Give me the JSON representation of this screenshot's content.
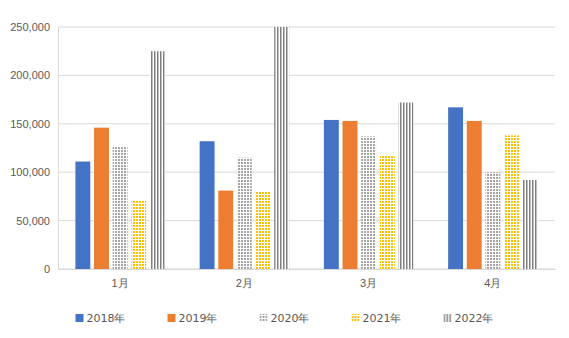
{
  "chart_data": {
    "type": "bar",
    "categories": [
      "1月",
      "2月",
      "3月",
      "4月"
    ],
    "series": [
      {
        "name": "2018年",
        "color": "#4472c4",
        "values": [
          111000,
          132000,
          154000,
          167000
        ]
      },
      {
        "name": "2019年",
        "color": "#ed7d31",
        "values": [
          146000,
          81000,
          153000,
          153000
        ]
      },
      {
        "name": "2020年",
        "color": "#a5a5a5",
        "values": [
          126000,
          115000,
          137000,
          100000
        ]
      },
      {
        "name": "2021年",
        "color": "#ffc000",
        "values": [
          71000,
          80000,
          117000,
          138000
        ]
      },
      {
        "name": "2022年",
        "color": "#7f7f7f",
        "values": [
          225000,
          250000,
          172000,
          92000
        ]
      }
    ],
    "ylim": [
      0,
      250000
    ],
    "yticks": [
      0,
      {
        "value": 50000,
        "label": "50,000"
      },
      {
        "value": 100000,
        "label": "100,000"
      },
      {
        "value": 150000,
        "label": "150,000"
      },
      {
        "value": 200000,
        "label": "200,000"
      },
      {
        "value": 250000,
        "label": "250,000"
      }
    ],
    "grid": true,
    "legend": "bottom"
  }
}
